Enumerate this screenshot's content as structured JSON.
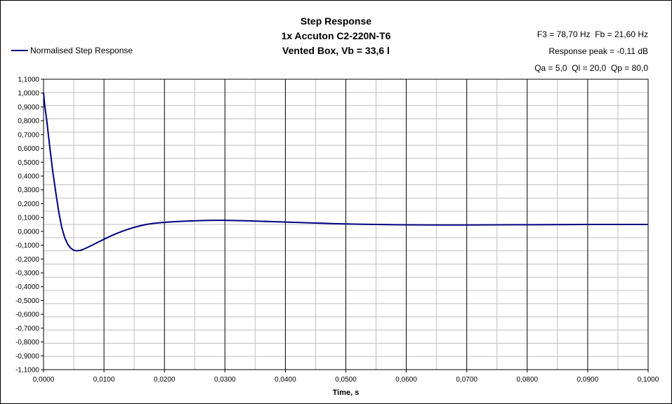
{
  "chart": {
    "title_lines": [
      "Step Response",
      "1x Accuton C2-220N-T6",
      "Vented Box, Vb = 33,6 l"
    ],
    "notes": [
      "F3 = 78,70 Hz  Fb = 21,60 Hz",
      "Response peak = -0,11 dB",
      "Qa = 5,0  Ql = 20,0  Qp = 80,0"
    ],
    "legend_label": "Normalised Step Response",
    "xlabel": "Time, s"
  },
  "chart_data": {
    "type": "line",
    "title": "Step Response",
    "subtitle": [
      "1x Accuton C2-220N-T6",
      "Vented Box, Vb = 33,6 l"
    ],
    "xlabel": "Time, s",
    "ylabel": "",
    "xlim": [
      0,
      0.1
    ],
    "ylim": [
      -1.1,
      1.1
    ],
    "x_ticks": [
      "0,0000",
      "0,0100",
      "0,0200",
      "0,0300",
      "0,0400",
      "0,0500",
      "0,0600",
      "0,0700",
      "0,0800",
      "0,0900",
      "0,1000"
    ],
    "y_ticks": [
      "1,1000",
      "1,0000",
      "0,9000",
      "0,8000",
      "0,7000",
      "0,6000",
      "0,5000",
      "0,4000",
      "0,3000",
      "0,2000",
      "0,1000",
      "0,0000",
      "-0,1000",
      "-0,2000",
      "-0,3000",
      "-0,4000",
      "-0,5000",
      "-0,6000",
      "-0,7000",
      "-0,8000",
      "-0,9000",
      "-1,1000"
    ],
    "grid": true,
    "legend_position": "top-left",
    "series": [
      {
        "name": "Normalised Step Response",
        "color": "#000080",
        "x": [
          0,
          0.0002,
          0.0005,
          0.001,
          0.0015,
          0.002,
          0.0025,
          0.003,
          0.0035,
          0.004,
          0.0045,
          0.005,
          0.0055,
          0.006,
          0.0065,
          0.007,
          0.008,
          0.009,
          0.01,
          0.011,
          0.012,
          0.013,
          0.014,
          0.015,
          0.016,
          0.017,
          0.018,
          0.019,
          0.02,
          0.022,
          0.024,
          0.026,
          0.028,
          0.03,
          0.032,
          0.034,
          0.036,
          0.038,
          0.04,
          0.042,
          0.044,
          0.046,
          0.048,
          0.05,
          0.052,
          0.055,
          0.058,
          0.06,
          0.065,
          0.07,
          0.075,
          0.08,
          0.085,
          0.09,
          0.095,
          0.1
        ],
        "y": [
          1.0,
          0.9,
          0.8,
          0.6,
          0.41,
          0.25,
          0.1,
          -0.02,
          -0.1,
          -0.15,
          -0.18,
          -0.195,
          -0.2,
          -0.197,
          -0.19,
          -0.18,
          -0.158,
          -0.135,
          -0.112,
          -0.09,
          -0.07,
          -0.052,
          -0.036,
          -0.022,
          -0.01,
          0.0,
          0.007,
          0.012,
          0.016,
          0.022,
          0.026,
          0.029,
          0.031,
          0.031,
          0.029,
          0.027,
          0.024,
          0.021,
          0.018,
          0.015,
          0.012,
          0.009,
          0.006,
          0.004,
          0.002,
          0.0,
          -0.002,
          -0.003,
          -0.004,
          -0.004,
          -0.003,
          -0.002,
          -0.001,
          0.0,
          0.0,
          0.0
        ]
      }
    ]
  }
}
